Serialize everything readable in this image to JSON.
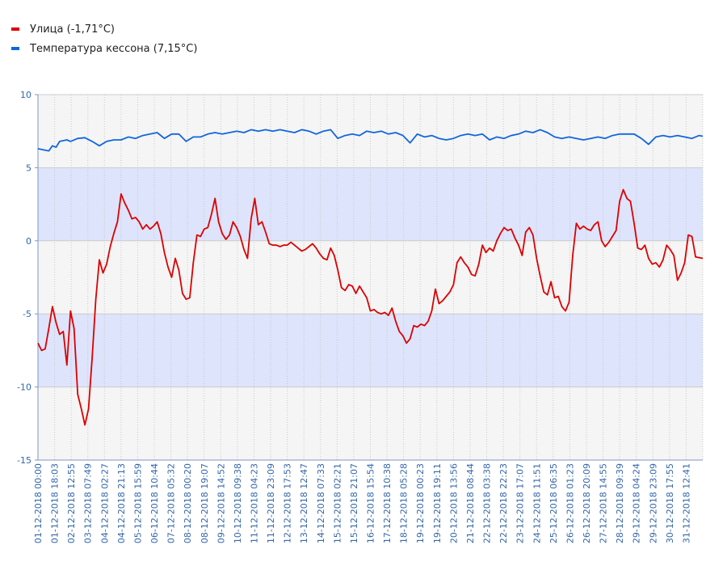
{
  "legend": {
    "items": [
      {
        "label": "Улица (-1,71°C)",
        "color": "#dd0000"
      },
      {
        "label": "Температура кессона (7,15°C)",
        "color": "#1166dd"
      }
    ]
  },
  "chart_data": {
    "type": "line",
    "ylim": [
      -15,
      10
    ],
    "yticks": [
      10,
      5,
      0,
      -5,
      -10,
      -15
    ],
    "shaded_bands": [
      [
        0,
        5
      ],
      [
        -10,
        -5
      ]
    ],
    "band_color": "#dde4fb",
    "grid": true,
    "x_labels": [
      "01-12-2018 00:00",
      "01-12-2018 18:03",
      "02-12-2018 12:55",
      "03-12-2018 07:49",
      "04-12-2018 02:27",
      "04-12-2018 21:13",
      "05-12-2018 15:59",
      "06-12-2018 10:44",
      "07-12-2018 05:32",
      "08-12-2018 00:20",
      "08-12-2018 19:07",
      "09-12-2018 14:52",
      "10-12-2018 09:38",
      "11-12-2018 04:23",
      "11-12-2018 23:09",
      "12-12-2018 17:53",
      "13-12-2018 12:47",
      "14-12-2018 07:33",
      "15-12-2018 02:21",
      "15-12-2018 21:07",
      "16-12-2018 15:54",
      "17-12-2018 10:38",
      "18-12-2018 05:28",
      "19-12-2018 00:23",
      "19-12-2018 19:11",
      "20-12-2018 13:56",
      "21-12-2018 08:44",
      "22-12-2018 03:38",
      "22-12-2018 22:23",
      "23-12-2018 17:07",
      "24-12-2018 11:51",
      "25-12-2018 06:35",
      "26-12-2018 01:23",
      "26-12-2018 20:09",
      "27-12-2018 14:55",
      "28-12-2018 09:39",
      "29-12-2018 04:24",
      "29-12-2018 23:09",
      "30-12-2018 17:55",
      "31-12-2018 12:41"
    ],
    "series": [
      {
        "name": "Улица (-1,71°C)",
        "color": "#dd0000",
        "points": [
          [
            0,
            -7.0
          ],
          [
            1,
            -7.5
          ],
          [
            2,
            -7.4
          ],
          [
            3,
            -6.0
          ],
          [
            4,
            -4.5
          ],
          [
            5,
            -5.6
          ],
          [
            6,
            -6.4
          ],
          [
            7,
            -6.2
          ],
          [
            8,
            -8.5
          ],
          [
            9,
            -4.8
          ],
          [
            10,
            -6.0
          ],
          [
            11,
            -10.5
          ],
          [
            12,
            -11.5
          ],
          [
            13,
            -12.6
          ],
          [
            14,
            -11.5
          ],
          [
            15,
            -8.0
          ],
          [
            16,
            -4.0
          ],
          [
            17,
            -1.3
          ],
          [
            18,
            -2.2
          ],
          [
            19,
            -1.6
          ],
          [
            20,
            -0.4
          ],
          [
            21,
            0.5
          ],
          [
            22,
            1.3
          ],
          [
            23,
            3.2
          ],
          [
            24,
            2.6
          ],
          [
            25,
            2.1
          ],
          [
            26,
            1.5
          ],
          [
            27,
            1.6
          ],
          [
            28,
            1.3
          ],
          [
            29,
            0.8
          ],
          [
            30,
            1.1
          ],
          [
            31,
            0.8
          ],
          [
            32,
            1.0
          ],
          [
            33,
            1.3
          ],
          [
            34,
            0.5
          ],
          [
            35,
            -0.8
          ],
          [
            36,
            -1.8
          ],
          [
            37,
            -2.5
          ],
          [
            38,
            -1.2
          ],
          [
            39,
            -2.0
          ],
          [
            40,
            -3.6
          ],
          [
            41,
            -4.0
          ],
          [
            42,
            -3.9
          ],
          [
            43,
            -1.5
          ],
          [
            44,
            0.4
          ],
          [
            45,
            0.3
          ],
          [
            46,
            0.8
          ],
          [
            47,
            0.9
          ],
          [
            48,
            1.8
          ],
          [
            49,
            2.9
          ],
          [
            50,
            1.3
          ],
          [
            51,
            0.5
          ],
          [
            52,
            0.1
          ],
          [
            53,
            0.4
          ],
          [
            54,
            1.3
          ],
          [
            55,
            0.9
          ],
          [
            56,
            0.3
          ],
          [
            57,
            -0.6
          ],
          [
            58,
            -1.2
          ],
          [
            59,
            1.5
          ],
          [
            60,
            2.9
          ],
          [
            61,
            1.1
          ],
          [
            62,
            1.3
          ],
          [
            63,
            0.6
          ],
          [
            64,
            -0.2
          ],
          [
            65,
            -0.3
          ],
          [
            66,
            -0.3
          ],
          [
            67,
            -0.4
          ],
          [
            68,
            -0.3
          ],
          [
            69,
            -0.3
          ],
          [
            70,
            -0.1
          ],
          [
            71,
            -0.3
          ],
          [
            72,
            -0.5
          ],
          [
            73,
            -0.7
          ],
          [
            74,
            -0.6
          ],
          [
            75,
            -0.4
          ],
          [
            76,
            -0.2
          ],
          [
            77,
            -0.5
          ],
          [
            78,
            -0.9
          ],
          [
            79,
            -1.2
          ],
          [
            80,
            -1.3
          ],
          [
            81,
            -0.5
          ],
          [
            82,
            -1.0
          ],
          [
            83,
            -2.0
          ],
          [
            84,
            -3.2
          ],
          [
            85,
            -3.4
          ],
          [
            86,
            -3.0
          ],
          [
            87,
            -3.1
          ],
          [
            88,
            -3.6
          ],
          [
            89,
            -3.1
          ],
          [
            90,
            -3.5
          ],
          [
            91,
            -3.9
          ],
          [
            92,
            -4.8
          ],
          [
            93,
            -4.7
          ],
          [
            94,
            -4.9
          ],
          [
            95,
            -5.0
          ],
          [
            96,
            -4.9
          ],
          [
            97,
            -5.1
          ],
          [
            98,
            -4.6
          ],
          [
            99,
            -5.5
          ],
          [
            100,
            -6.2
          ],
          [
            101,
            -6.5
          ],
          [
            102,
            -7.0
          ],
          [
            103,
            -6.7
          ],
          [
            104,
            -5.8
          ],
          [
            105,
            -5.9
          ],
          [
            106,
            -5.7
          ],
          [
            107,
            -5.8
          ],
          [
            108,
            -5.5
          ],
          [
            109,
            -4.8
          ],
          [
            110,
            -3.3
          ],
          [
            111,
            -4.3
          ],
          [
            112,
            -4.1
          ],
          [
            113,
            -3.8
          ],
          [
            114,
            -3.5
          ],
          [
            115,
            -3.0
          ],
          [
            116,
            -1.5
          ],
          [
            117,
            -1.1
          ],
          [
            118,
            -1.5
          ],
          [
            119,
            -1.8
          ],
          [
            120,
            -2.3
          ],
          [
            121,
            -2.4
          ],
          [
            122,
            -1.6
          ],
          [
            123,
            -0.3
          ],
          [
            124,
            -0.8
          ],
          [
            125,
            -0.5
          ],
          [
            126,
            -0.7
          ],
          [
            127,
            0.0
          ],
          [
            128,
            0.5
          ],
          [
            129,
            0.9
          ],
          [
            130,
            0.7
          ],
          [
            131,
            0.8
          ],
          [
            132,
            0.2
          ],
          [
            133,
            -0.3
          ],
          [
            134,
            -1.0
          ],
          [
            135,
            0.6
          ],
          [
            136,
            0.9
          ],
          [
            137,
            0.4
          ],
          [
            138,
            -1.2
          ],
          [
            139,
            -2.4
          ],
          [
            140,
            -3.5
          ],
          [
            141,
            -3.7
          ],
          [
            142,
            -2.8
          ],
          [
            143,
            -3.9
          ],
          [
            144,
            -3.8
          ],
          [
            145,
            -4.5
          ],
          [
            146,
            -4.8
          ],
          [
            147,
            -4.2
          ],
          [
            148,
            -1.0
          ],
          [
            149,
            1.2
          ],
          [
            150,
            0.8
          ],
          [
            151,
            1.0
          ],
          [
            152,
            0.8
          ],
          [
            153,
            0.7
          ],
          [
            154,
            1.1
          ],
          [
            155,
            1.3
          ],
          [
            156,
            0.0
          ],
          [
            157,
            -0.4
          ],
          [
            158,
            -0.1
          ],
          [
            159,
            0.3
          ],
          [
            160,
            0.7
          ],
          [
            161,
            2.7
          ],
          [
            162,
            3.5
          ],
          [
            163,
            2.9
          ],
          [
            164,
            2.7
          ],
          [
            165,
            1.2
          ],
          [
            166,
            -0.5
          ],
          [
            167,
            -0.6
          ],
          [
            168,
            -0.3
          ],
          [
            169,
            -1.2
          ],
          [
            170,
            -1.6
          ],
          [
            171,
            -1.5
          ],
          [
            172,
            -1.8
          ],
          [
            173,
            -1.3
          ],
          [
            174,
            -0.3
          ],
          [
            175,
            -0.6
          ],
          [
            176,
            -1.0
          ],
          [
            177,
            -2.7
          ],
          [
            178,
            -2.2
          ],
          [
            179,
            -1.5
          ],
          [
            180,
            0.4
          ],
          [
            181,
            0.3
          ],
          [
            182,
            -1.1
          ],
          [
            183,
            -1.15
          ],
          [
            184,
            -1.2
          ]
        ]
      },
      {
        "name": "Температура кессона (7,15°C)",
        "color": "#1166dd",
        "points": [
          [
            0,
            6.3
          ],
          [
            2,
            6.2
          ],
          [
            3,
            6.15
          ],
          [
            4,
            6.5
          ],
          [
            5,
            6.4
          ],
          [
            6,
            6.8
          ],
          [
            8,
            6.9
          ],
          [
            9,
            6.8
          ],
          [
            11,
            7.0
          ],
          [
            13,
            7.05
          ],
          [
            15,
            6.8
          ],
          [
            17,
            6.5
          ],
          [
            19,
            6.8
          ],
          [
            21,
            6.9
          ],
          [
            23,
            6.9
          ],
          [
            25,
            7.1
          ],
          [
            27,
            7.0
          ],
          [
            29,
            7.2
          ],
          [
            31,
            7.3
          ],
          [
            33,
            7.4
          ],
          [
            35,
            7.0
          ],
          [
            37,
            7.3
          ],
          [
            39,
            7.3
          ],
          [
            41,
            6.8
          ],
          [
            43,
            7.1
          ],
          [
            45,
            7.1
          ],
          [
            47,
            7.3
          ],
          [
            49,
            7.4
          ],
          [
            51,
            7.3
          ],
          [
            53,
            7.4
          ],
          [
            55,
            7.5
          ],
          [
            57,
            7.4
          ],
          [
            59,
            7.6
          ],
          [
            61,
            7.5
          ],
          [
            63,
            7.6
          ],
          [
            65,
            7.5
          ],
          [
            67,
            7.6
          ],
          [
            69,
            7.5
          ],
          [
            71,
            7.4
          ],
          [
            73,
            7.6
          ],
          [
            75,
            7.5
          ],
          [
            77,
            7.3
          ],
          [
            79,
            7.5
          ],
          [
            81,
            7.6
          ],
          [
            83,
            7.0
          ],
          [
            85,
            7.2
          ],
          [
            87,
            7.3
          ],
          [
            89,
            7.2
          ],
          [
            91,
            7.5
          ],
          [
            93,
            7.4
          ],
          [
            95,
            7.5
          ],
          [
            97,
            7.3
          ],
          [
            99,
            7.4
          ],
          [
            101,
            7.2
          ],
          [
            103,
            6.7
          ],
          [
            105,
            7.3
          ],
          [
            107,
            7.1
          ],
          [
            109,
            7.2
          ],
          [
            111,
            7.0
          ],
          [
            113,
            6.9
          ],
          [
            115,
            7.0
          ],
          [
            117,
            7.2
          ],
          [
            119,
            7.3
          ],
          [
            121,
            7.2
          ],
          [
            123,
            7.3
          ],
          [
            125,
            6.9
          ],
          [
            127,
            7.1
          ],
          [
            129,
            7.0
          ],
          [
            131,
            7.2
          ],
          [
            133,
            7.3
          ],
          [
            135,
            7.5
          ],
          [
            137,
            7.4
          ],
          [
            139,
            7.6
          ],
          [
            141,
            7.4
          ],
          [
            143,
            7.1
          ],
          [
            145,
            7.0
          ],
          [
            147,
            7.1
          ],
          [
            149,
            7.0
          ],
          [
            151,
            6.9
          ],
          [
            153,
            7.0
          ],
          [
            155,
            7.1
          ],
          [
            157,
            7.0
          ],
          [
            159,
            7.2
          ],
          [
            161,
            7.3
          ],
          [
            163,
            7.3
          ],
          [
            165,
            7.3
          ],
          [
            167,
            7.0
          ],
          [
            169,
            6.6
          ],
          [
            171,
            7.1
          ],
          [
            173,
            7.2
          ],
          [
            175,
            7.1
          ],
          [
            177,
            7.2
          ],
          [
            179,
            7.1
          ],
          [
            181,
            7.0
          ],
          [
            183,
            7.2
          ],
          [
            184,
            7.15
          ]
        ]
      }
    ]
  }
}
